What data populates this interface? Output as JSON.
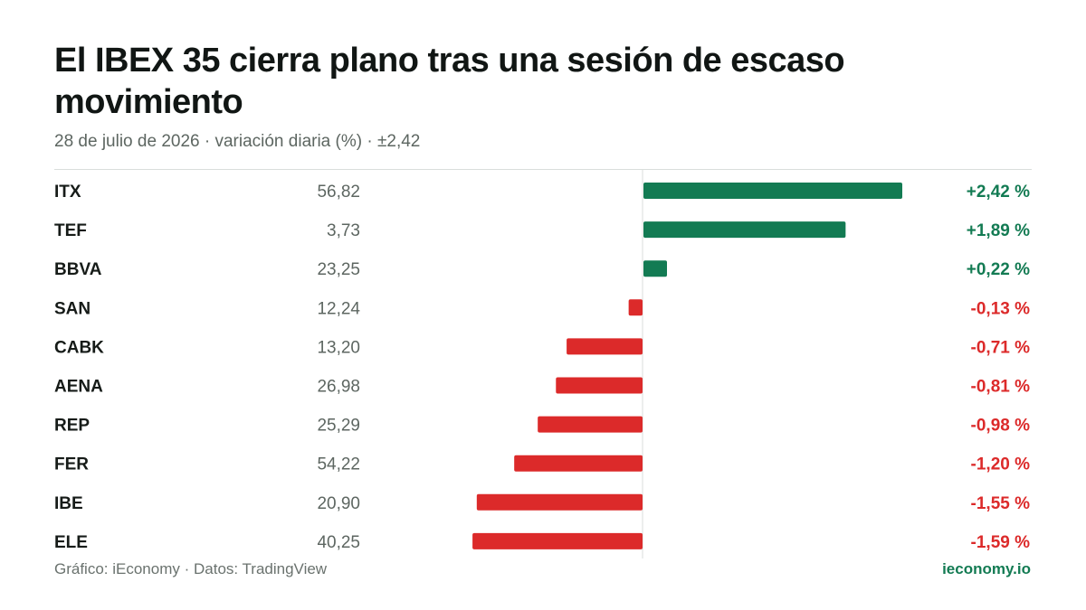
{
  "header": {
    "title": "El IBEX 35 cierra plano tras una sesión de escaso movimiento",
    "subtitle": "28 de julio de 2026 · variación diaria (%) · ±2,42"
  },
  "footer": {
    "source": "Gráfico: iEconomy · Datos: TradingView",
    "brand": "ieconomy.io"
  },
  "colors": {
    "positive": "#137b53",
    "negative": "#dc2a2a",
    "axis": "#d9dedb"
  },
  "chart_data": {
    "type": "bar",
    "orientation": "horizontal",
    "xlim": [
      -2.42,
      2.42
    ],
    "rows": [
      {
        "ticker": "ITX",
        "price": "56,82",
        "change": 2.42,
        "change_label": "+2,42 %"
      },
      {
        "ticker": "TEF",
        "price": "3,73",
        "change": 1.89,
        "change_label": "+1,89 %"
      },
      {
        "ticker": "BBVA",
        "price": "23,25",
        "change": 0.22,
        "change_label": "+0,22 %"
      },
      {
        "ticker": "SAN",
        "price": "12,24",
        "change": -0.13,
        "change_label": "-0,13 %"
      },
      {
        "ticker": "CABK",
        "price": "13,20",
        "change": -0.71,
        "change_label": "-0,71 %"
      },
      {
        "ticker": "AENA",
        "price": "26,98",
        "change": -0.81,
        "change_label": "-0,81 %"
      },
      {
        "ticker": "REP",
        "price": "25,29",
        "change": -0.98,
        "change_label": "-0,98 %"
      },
      {
        "ticker": "FER",
        "price": "54,22",
        "change": -1.2,
        "change_label": "-1,20 %"
      },
      {
        "ticker": "IBE",
        "price": "20,90",
        "change": -1.55,
        "change_label": "-1,55 %"
      },
      {
        "ticker": "ELE",
        "price": "40,25",
        "change": -1.59,
        "change_label": "-1,59 %"
      }
    ]
  }
}
